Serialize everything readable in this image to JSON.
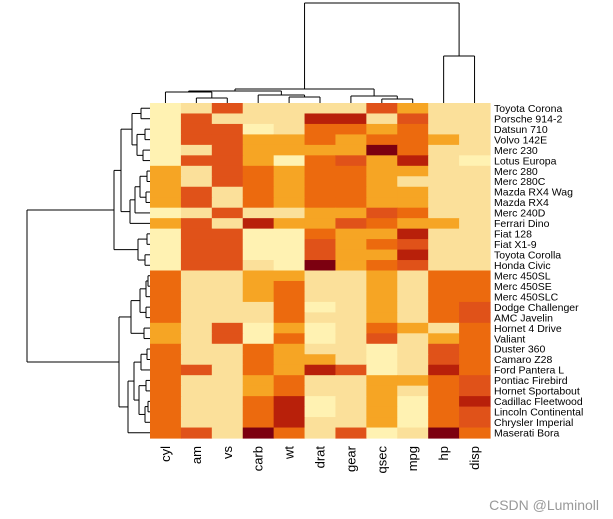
{
  "chart_data": {
    "type": "heatmap",
    "title": "",
    "xlabel": "",
    "ylabel": "",
    "colormap": [
      "#fff2b2",
      "#fbe09a",
      "#f6a524",
      "#ec6a0e",
      "#e05219",
      "#b8200a",
      "#7c0010"
    ],
    "columns": [
      "cyl",
      "am",
      "vs",
      "carb",
      "wt",
      "drat",
      "gear",
      "qsec",
      "mpg",
      "hp",
      "disp"
    ],
    "rows": [
      {
        "name": "Toyota Corona",
        "values": [
          0,
          1,
          4,
          1,
          1,
          1,
          1,
          4,
          2,
          1,
          1
        ]
      },
      {
        "name": "Porsche 914-2",
        "values": [
          0,
          4,
          1,
          1,
          1,
          5,
          5,
          1,
          4,
          1,
          1
        ]
      },
      {
        "name": "Datsun 710",
        "values": [
          0,
          4,
          4,
          0,
          1,
          3,
          3,
          2,
          3,
          1,
          1
        ]
      },
      {
        "name": "Volvo 142E",
        "values": [
          0,
          4,
          4,
          2,
          2,
          3,
          2,
          3,
          3,
          2,
          1
        ]
      },
      {
        "name": "Merc 230",
        "values": [
          0,
          1,
          4,
          2,
          2,
          2,
          2,
          6,
          3,
          1,
          1
        ]
      },
      {
        "name": "Lotus Europa",
        "values": [
          0,
          4,
          4,
          2,
          0,
          3,
          4,
          2,
          5,
          1,
          0
        ]
      },
      {
        "name": "Merc 280",
        "values": [
          2,
          1,
          4,
          3,
          2,
          3,
          3,
          2,
          2,
          1,
          1
        ]
      },
      {
        "name": "Merc 280C",
        "values": [
          2,
          1,
          4,
          3,
          2,
          3,
          3,
          2,
          1,
          1,
          1
        ]
      },
      {
        "name": "Mazda RX4 Wag",
        "values": [
          2,
          4,
          1,
          3,
          2,
          3,
          3,
          2,
          2,
          1,
          1
        ]
      },
      {
        "name": "Mazda RX4",
        "values": [
          2,
          4,
          1,
          3,
          2,
          3,
          3,
          2,
          2,
          1,
          1
        ]
      },
      {
        "name": "Merc 240D",
        "values": [
          0,
          1,
          4,
          1,
          1,
          2,
          2,
          4,
          3,
          1,
          1
        ]
      },
      {
        "name": "Ferrari Dino",
        "values": [
          2,
          4,
          1,
          5,
          2,
          2,
          4,
          3,
          2,
          2,
          1
        ]
      },
      {
        "name": "Fiat 128",
        "values": [
          0,
          4,
          4,
          0,
          0,
          3,
          2,
          2,
          5,
          1,
          1
        ]
      },
      {
        "name": "Fiat X1-9",
        "values": [
          0,
          4,
          4,
          0,
          0,
          4,
          2,
          3,
          4,
          1,
          1
        ]
      },
      {
        "name": "Toyota Corolla",
        "values": [
          0,
          4,
          4,
          0,
          0,
          4,
          2,
          2,
          5,
          1,
          1
        ]
      },
      {
        "name": "Honda Civic",
        "values": [
          0,
          4,
          4,
          1,
          0,
          6,
          2,
          3,
          4,
          1,
          1
        ]
      },
      {
        "name": "Merc 450SL",
        "values": [
          3,
          1,
          1,
          2,
          2,
          1,
          1,
          2,
          1,
          3,
          3
        ]
      },
      {
        "name": "Merc 450SE",
        "values": [
          3,
          1,
          1,
          2,
          3,
          1,
          1,
          2,
          1,
          3,
          3
        ]
      },
      {
        "name": "Merc 450SLC",
        "values": [
          3,
          1,
          1,
          2,
          3,
          1,
          1,
          2,
          1,
          3,
          3
        ]
      },
      {
        "name": "Dodge Challenger",
        "values": [
          3,
          1,
          1,
          1,
          3,
          0,
          1,
          2,
          1,
          3,
          4
        ]
      },
      {
        "name": "AMC Javelin",
        "values": [
          3,
          1,
          1,
          1,
          3,
          1,
          1,
          2,
          1,
          3,
          4
        ]
      },
      {
        "name": "Hornet 4 Drive",
        "values": [
          2,
          1,
          4,
          0,
          2,
          0,
          1,
          3,
          2,
          1,
          3
        ]
      },
      {
        "name": "Valiant",
        "values": [
          2,
          1,
          4,
          0,
          3,
          0,
          1,
          4,
          1,
          2,
          3
        ]
      },
      {
        "name": "Duster 360",
        "values": [
          3,
          1,
          1,
          3,
          2,
          1,
          1,
          0,
          1,
          4,
          3
        ]
      },
      {
        "name": "Camaro Z28",
        "values": [
          3,
          1,
          1,
          3,
          2,
          2,
          1,
          0,
          1,
          4,
          3
        ]
      },
      {
        "name": "Ford Pantera L",
        "values": [
          3,
          4,
          1,
          3,
          2,
          5,
          4,
          0,
          1,
          5,
          3
        ]
      },
      {
        "name": "Pontiac Firebird",
        "values": [
          3,
          1,
          1,
          2,
          3,
          1,
          1,
          2,
          2,
          3,
          4
        ]
      },
      {
        "name": "Hornet Sportabout",
        "values": [
          3,
          1,
          1,
          2,
          3,
          1,
          1,
          2,
          1,
          3,
          4
        ]
      },
      {
        "name": "Cadillac Fleetwood",
        "values": [
          3,
          1,
          1,
          3,
          5,
          0,
          1,
          2,
          0,
          3,
          5
        ]
      },
      {
        "name": "Lincoln Continental",
        "values": [
          3,
          1,
          1,
          3,
          5,
          0,
          1,
          2,
          0,
          3,
          4
        ]
      },
      {
        "name": "Chrysler Imperial",
        "values": [
          3,
          1,
          1,
          3,
          5,
          1,
          1,
          2,
          0,
          3,
          4
        ]
      },
      {
        "name": "Maserati Bora",
        "values": [
          3,
          4,
          1,
          6,
          3,
          1,
          4,
          0,
          1,
          6,
          3
        ]
      }
    ]
  },
  "watermark": "CSDN @Luminoll"
}
